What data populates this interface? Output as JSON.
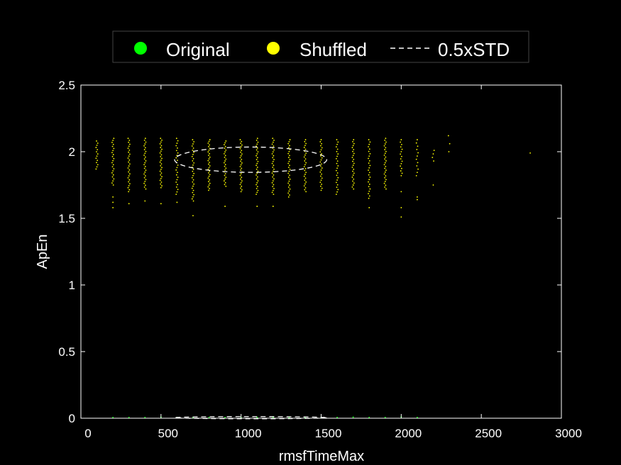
{
  "chart_data": {
    "type": "scatter",
    "title": "",
    "xlabel": "rmsfTimeMax",
    "ylabel": "ApEn",
    "xlim": [
      0,
      3000
    ],
    "ylim": [
      0,
      2.5
    ],
    "xticks": [
      0,
      500,
      1000,
      1500,
      2000,
      2500,
      3000
    ],
    "yticks": [
      0,
      0.5,
      1,
      1.5,
      2,
      2.5
    ],
    "xtick_labels": [
      "0",
      "500",
      "1000",
      "1500",
      "2000",
      "2500",
      "3000"
    ],
    "ytick_labels": [
      "0",
      "0.5",
      "1",
      "1.5",
      "2",
      "2.5"
    ],
    "grid": false,
    "legend_placement": "top-center",
    "colors": {
      "background": "#000000",
      "axes": "#ffffff",
      "original": "#00ff00",
      "shuffled": "#ffff00",
      "std": "#ffffff"
    },
    "series": [
      {
        "name": "Original",
        "marker": "dot",
        "points": [
          [
            200,
            0.005
          ],
          [
            300,
            0.005
          ],
          [
            400,
            0.005
          ],
          [
            500,
            0.008
          ],
          [
            600,
            0.005
          ],
          [
            700,
            0.005
          ],
          [
            800,
            0.005
          ],
          [
            900,
            0.005
          ],
          [
            1000,
            0.005
          ],
          [
            1100,
            0.005
          ],
          [
            1200,
            0.005
          ],
          [
            1300,
            0.005
          ],
          [
            1400,
            0.005
          ],
          [
            1500,
            0.005
          ],
          [
            1600,
            0.005
          ],
          [
            1700,
            0.008
          ],
          [
            1800,
            0.005
          ],
          [
            1900,
            0.005
          ],
          [
            2000,
            0.01
          ],
          [
            2100,
            0.005
          ]
        ]
      },
      {
        "name": "Shuffled",
        "marker": "dot",
        "columns": [
          {
            "x": 100,
            "min": 1.87,
            "max": 2.08,
            "count": 14,
            "extra": []
          },
          {
            "x": 200,
            "min": 1.75,
            "max": 2.1,
            "count": 24,
            "extra": [
              1.66,
              1.62,
              1.58
            ]
          },
          {
            "x": 300,
            "min": 1.7,
            "max": 2.1,
            "count": 28,
            "extra": [
              1.61
            ]
          },
          {
            "x": 400,
            "min": 1.72,
            "max": 2.1,
            "count": 28,
            "extra": [
              1.63
            ]
          },
          {
            "x": 500,
            "min": 1.73,
            "max": 2.1,
            "count": 28,
            "extra": [
              1.61
            ]
          },
          {
            "x": 600,
            "min": 1.68,
            "max": 2.1,
            "count": 24,
            "extra": [
              1.62
            ]
          },
          {
            "x": 700,
            "min": 1.63,
            "max": 2.09,
            "count": 30,
            "extra": [
              1.52
            ]
          },
          {
            "x": 800,
            "min": 1.71,
            "max": 2.09,
            "count": 30,
            "extra": []
          },
          {
            "x": 900,
            "min": 1.74,
            "max": 2.08,
            "count": 26,
            "extra": [
              1.59
            ]
          },
          {
            "x": 1000,
            "min": 1.7,
            "max": 2.09,
            "count": 30,
            "extra": []
          },
          {
            "x": 1100,
            "min": 1.68,
            "max": 2.1,
            "count": 30,
            "extra": [
              1.59
            ]
          },
          {
            "x": 1200,
            "min": 1.68,
            "max": 2.1,
            "count": 30,
            "extra": [
              1.59
            ]
          },
          {
            "x": 1300,
            "min": 1.66,
            "max": 2.09,
            "count": 30,
            "extra": []
          },
          {
            "x": 1400,
            "min": 1.7,
            "max": 2.09,
            "count": 28,
            "extra": []
          },
          {
            "x": 1500,
            "min": 1.71,
            "max": 2.09,
            "count": 26,
            "extra": []
          },
          {
            "x": 1600,
            "min": 1.68,
            "max": 2.09,
            "count": 24,
            "extra": []
          },
          {
            "x": 1700,
            "min": 1.72,
            "max": 2.09,
            "count": 26,
            "extra": []
          },
          {
            "x": 1800,
            "min": 1.65,
            "max": 2.09,
            "count": 26,
            "extra": [
              1.58
            ]
          },
          {
            "x": 1900,
            "min": 1.72,
            "max": 2.1,
            "count": 28,
            "extra": []
          },
          {
            "x": 2000,
            "min": 1.82,
            "max": 2.09,
            "count": 16,
            "extra": [
              1.7,
              1.58,
              1.51
            ]
          },
          {
            "x": 2100,
            "min": 1.82,
            "max": 2.09,
            "count": 12,
            "extra": [
              1.66,
              1.64
            ]
          },
          {
            "x": 2200,
            "min": 1.93,
            "max": 2.01,
            "count": 4,
            "extra": [
              1.75
            ]
          },
          {
            "x": 2300,
            "min": 2.0,
            "max": 2.12,
            "count": 3,
            "extra": []
          },
          {
            "x": 2800,
            "min": 1.99,
            "max": 1.99,
            "count": 1,
            "extra": []
          }
        ]
      }
    ],
    "std_ellipses": [
      {
        "name": "0.5xSTD",
        "cx": 1060,
        "cy": 1.94,
        "rx": 475,
        "ry": 0.095,
        "style": "dashed"
      },
      {
        "name": "0.5xSTD",
        "cx": 1060,
        "cy": 0.004,
        "rx": 475,
        "ry": 0.004,
        "style": "dashed"
      }
    ],
    "legend": [
      {
        "label": "Original",
        "symbol": "circle",
        "color": "#00ff00"
      },
      {
        "label": "Shuffled",
        "symbol": "circle",
        "color": "#ffff00"
      },
      {
        "label": "0.5xSTD",
        "symbol": "dashed-line",
        "color": "#ffffff"
      }
    ]
  }
}
